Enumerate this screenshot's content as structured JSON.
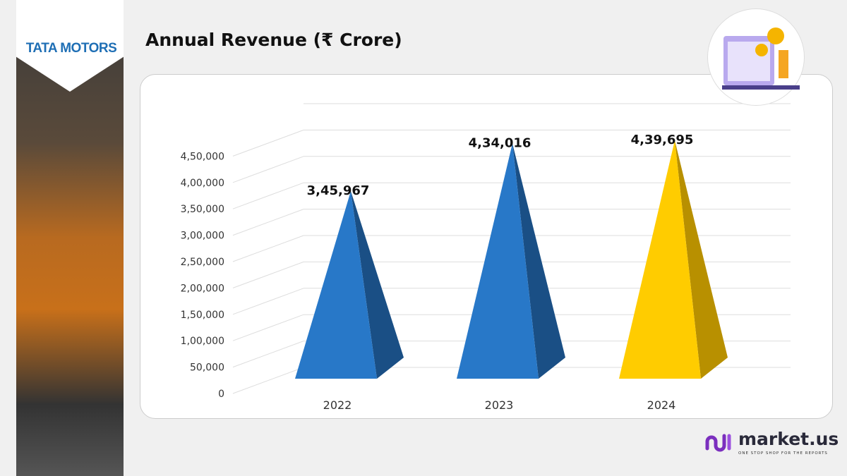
{
  "logo": "TATA MOTORS",
  "title": "Annual Revenue (₹ Crore)",
  "brand": {
    "name": "market.us",
    "tagline": "ONE STOP SHOP FOR THE REPORTS",
    "accent": "#7b2fbe"
  },
  "chart_data": {
    "type": "bar",
    "style": "3d-pyramid",
    "categories": [
      "2022",
      "2023",
      "2024"
    ],
    "values": [
      345967,
      434016,
      439695
    ],
    "value_labels": [
      "3,45,967",
      "4,34,016",
      "4,39,695"
    ],
    "colors": [
      "#2878c8",
      "#2878c8",
      "#ffcc00"
    ],
    "yticks": [
      "0",
      "50,000",
      "1,00,000",
      "1,50,000",
      "2,00,000",
      "2,50,000",
      "3,00,000",
      "3,50,000",
      "4,00,000",
      "4,50,000"
    ],
    "ylim": [
      0,
      450000
    ],
    "grid": true,
    "title": "Annual Revenue (₹ Crore)"
  }
}
